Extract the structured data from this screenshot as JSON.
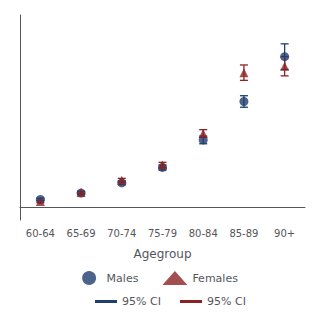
{
  "chart_data": {
    "type": "scatter",
    "x_label": "Agegroup",
    "categories": [
      "60-64",
      "65-69",
      "70-74",
      "75-79",
      "80-84",
      "85-89",
      "90+"
    ],
    "ylim": [
      -2,
      30
    ],
    "yticks": [],
    "grid": false,
    "tick_labels": "x",
    "legend": "bottom",
    "series": [
      {
        "name": "Males",
        "color": "#1f3d6e",
        "marker": "circle",
        "values": [
          1.2,
          2.2,
          3.8,
          6.2,
          10.5,
          16.5,
          23.5
        ],
        "ci_low": [
          1.0,
          2.0,
          3.5,
          5.8,
          9.9,
          15.6,
          21.5
        ],
        "ci_high": [
          1.4,
          2.4,
          4.1,
          6.6,
          11.1,
          17.4,
          25.5
        ],
        "error_label": "95% CI"
      },
      {
        "name": "Females",
        "color": "#8b2323",
        "marker": "triangle",
        "values": [
          0.9,
          2.3,
          4.2,
          6.6,
          11.5,
          21.0,
          22.0
        ],
        "ci_low": [
          0.7,
          2.1,
          3.9,
          6.2,
          10.9,
          19.8,
          20.5
        ],
        "ci_high": [
          1.1,
          2.5,
          4.5,
          7.0,
          12.1,
          22.2,
          23.5
        ],
        "error_label": "95% CI"
      }
    ]
  }
}
